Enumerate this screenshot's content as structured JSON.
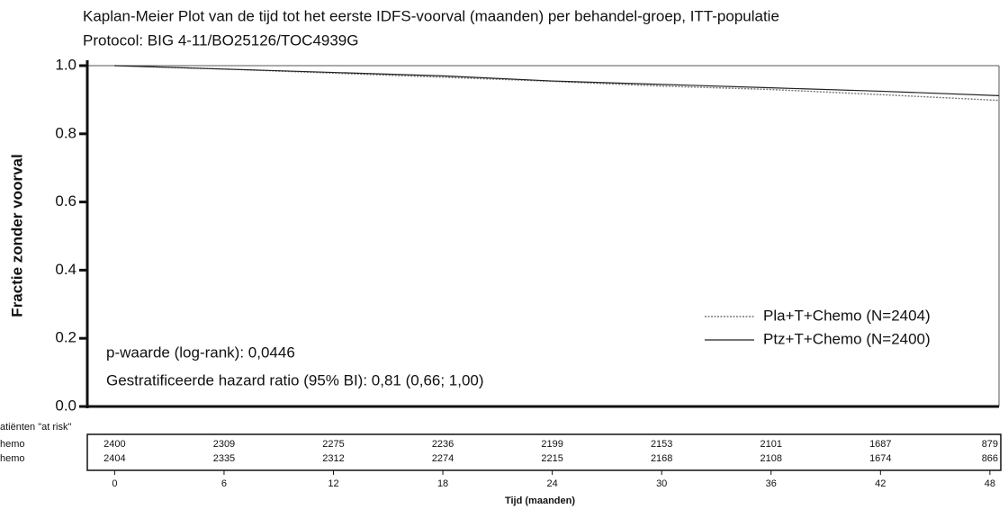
{
  "chart_data": {
    "type": "line",
    "title": "Kaplan-Meier Plot van de tijd tot het eerste IDFS-voorval (maanden) per behandel-groep, ITT-populatie",
    "subtitle": "Protocol: BIG 4-11/BO25126/TOC4939G",
    "y_label": "Fractie zonder voorval",
    "x_label": "Tijd (maanden)",
    "x": [
      0,
      6,
      12,
      18,
      24,
      30,
      36,
      42,
      48.5
    ],
    "series": [
      {
        "name": "Pla+T+Chemo (N=2404)",
        "color": "#777777",
        "dashed": true,
        "values": [
          1.0,
          0.99,
          0.978,
          0.966,
          0.954,
          0.94,
          0.93,
          0.915,
          0.898
        ]
      },
      {
        "name": "Ptz+T+Chemo (N=2400)",
        "color": "#222222",
        "dashed": false,
        "values": [
          1.0,
          0.99,
          0.98,
          0.97,
          0.955,
          0.945,
          0.935,
          0.925,
          0.912
        ]
      }
    ],
    "xlim": [
      -1.5,
      48.5
    ],
    "ylim": [
      0,
      1
    ],
    "xticks": [
      0,
      6,
      12,
      18,
      24,
      30,
      36,
      42,
      48
    ],
    "yticks": [
      {
        "value": 0,
        "label": "0.0"
      },
      0.2,
      0.4,
      0.6,
      0.8,
      {
        "value": 1,
        "label": "1.0"
      }
    ],
    "legend": "lower right",
    "annotations": [
      "p-waarde (log-rank): 0,0446",
      "Gestratificeerde  hazard ratio (95% BI): 0,81 (0,66; 1,00)"
    ],
    "risk_table": {
      "title": "atiënten \"at risk\"",
      "rows": [
        {
          "label": "hemo",
          "values": [
            2400,
            2309,
            2275,
            2236,
            2199,
            2153,
            2101,
            1687,
            879
          ]
        },
        {
          "label": "hemo",
          "values": [
            2404,
            2335,
            2312,
            2274,
            2215,
            2168,
            2108,
            1674,
            866
          ]
        }
      ]
    }
  }
}
